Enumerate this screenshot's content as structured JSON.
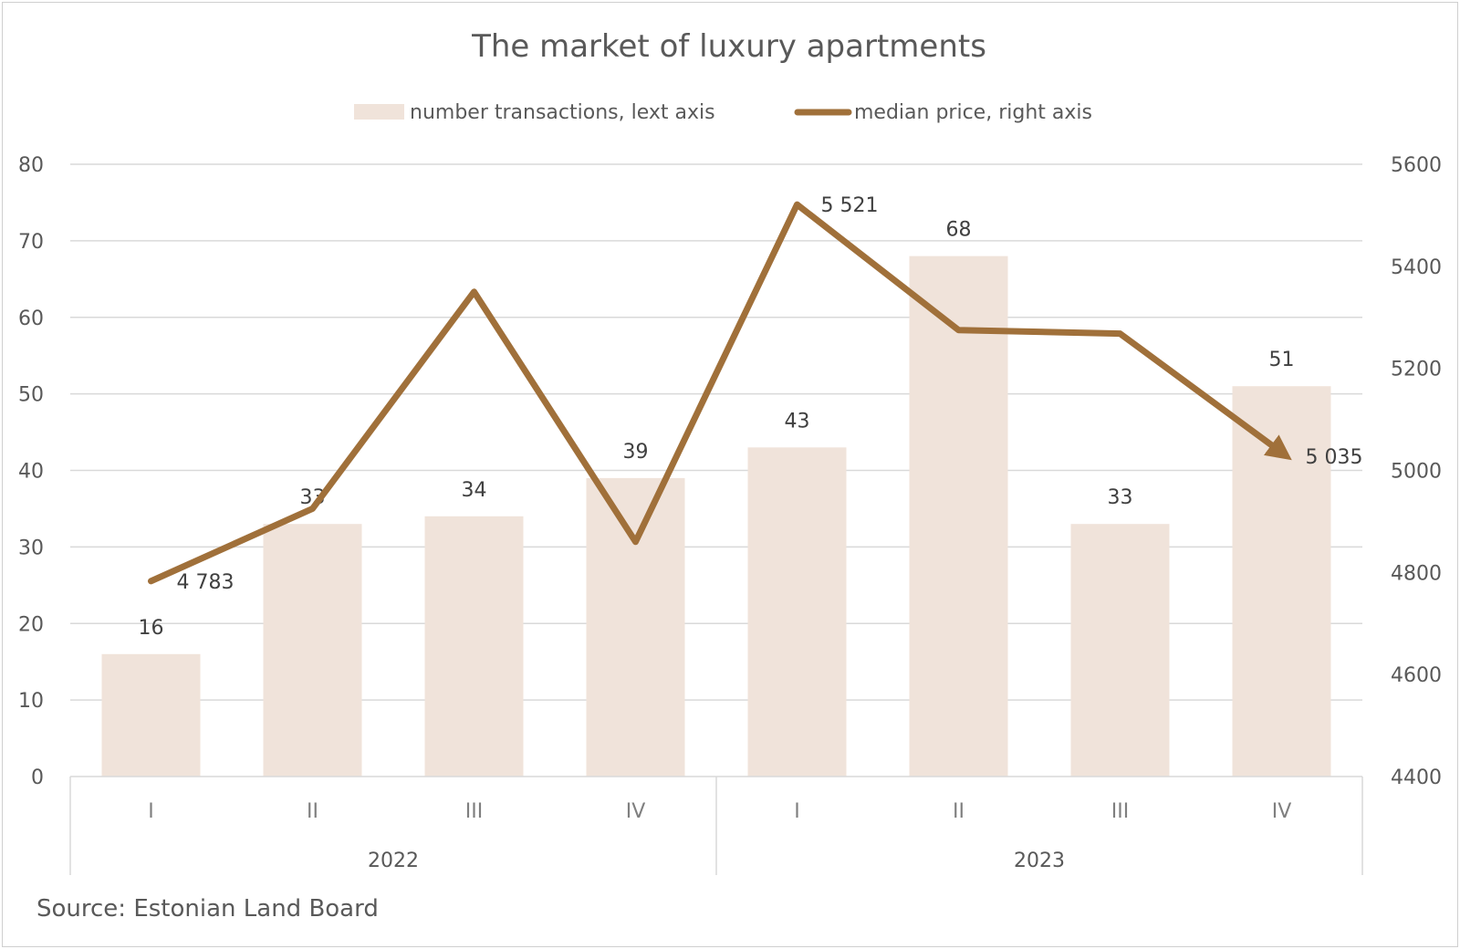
{
  "chart_data": {
    "type": "bar",
    "title": "The market of luxury apartments",
    "source": "Source: Estonian Land Board",
    "groups": [
      {
        "label": "2022",
        "categories": [
          "I",
          "II",
          "III",
          "IV"
        ]
      },
      {
        "label": "2023",
        "categories": [
          "I",
          "II",
          "III",
          "IV"
        ]
      }
    ],
    "series": [
      {
        "name": "number transactions, lext axis",
        "type": "bar",
        "axis": "left",
        "color": "#f0e3da",
        "values": [
          16,
          33,
          34,
          39,
          43,
          68,
          33,
          51
        ],
        "data_labels": [
          "16",
          "33",
          "34",
          "39",
          "43",
          "68",
          "33",
          "51"
        ]
      },
      {
        "name": "median price, right axis",
        "type": "line",
        "axis": "right",
        "color": "#a0703a",
        "values": [
          4783,
          4925,
          5350,
          4860,
          5521,
          5275,
          5268,
          5035
        ],
        "data_labels": [
          "4 783",
          "",
          "",
          "",
          "5 521",
          "",
          "",
          "5 035"
        ]
      }
    ],
    "left_axis": {
      "min": 0,
      "max": 80,
      "step": 10,
      "ticks": [
        "0",
        "10",
        "20",
        "30",
        "40",
        "50",
        "60",
        "70",
        "80"
      ]
    },
    "right_axis": {
      "min": 4400,
      "max": 5600,
      "step": 200,
      "ticks": [
        "4400",
        "4600",
        "4800",
        "5000",
        "5200",
        "5400",
        "5600"
      ]
    },
    "grid": true,
    "legend_position": "top"
  }
}
